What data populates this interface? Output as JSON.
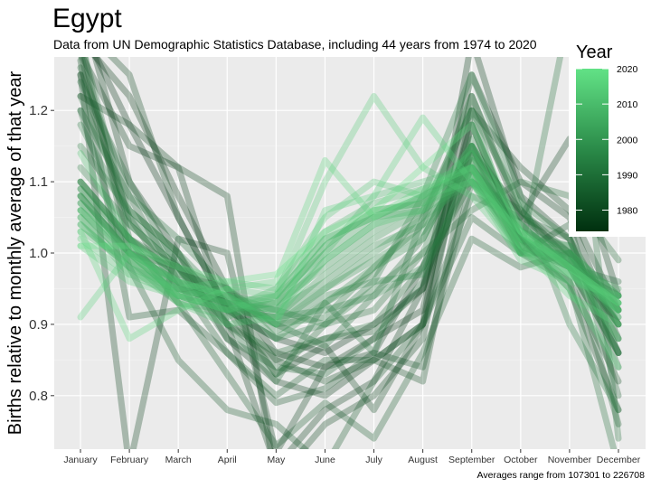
{
  "chart_data": {
    "type": "line",
    "title": "Egypt",
    "subtitle": "Data from UN Demographic Statistics Database, including 44 years from 1974 to 2020",
    "xlabel": "",
    "ylabel": "Births relative to monthly average of that year",
    "caption": "Averages range from 107301 to 226708",
    "categories": [
      "January",
      "February",
      "March",
      "April",
      "May",
      "June",
      "July",
      "August",
      "September",
      "October",
      "November",
      "December"
    ],
    "ylim": [
      0.725,
      1.275
    ],
    "yticks": [
      0.8,
      0.9,
      1.0,
      1.1,
      1.2
    ],
    "ytick_labels": [
      "0.8",
      "0.9",
      "1.0",
      "1.1",
      "1.2"
    ],
    "grid": true,
    "legend": {
      "title": "Year",
      "position": "top-right",
      "type": "colorbar",
      "range": [
        1974,
        2020
      ],
      "ticks": [
        1980,
        1990,
        2000,
        2010,
        2020
      ],
      "tick_labels": [
        "1980",
        "1990",
        "2000",
        "2010",
        "2020"
      ],
      "color_low": "#00300f",
      "color_high": "#62e286"
    },
    "series": [
      {
        "year": 1974,
        "values": [
          1.32,
          1.18,
          1.05,
          0.92,
          0.88,
          0.86,
          0.9,
          0.95,
          1.18,
          1.02,
          0.98,
          0.94
        ]
      },
      {
        "year": 1975,
        "values": [
          1.3,
          1.22,
          1.08,
          0.95,
          0.86,
          0.84,
          0.88,
          0.92,
          1.22,
          1.05,
          1.0,
          0.9
        ]
      },
      {
        "year": 1976,
        "values": [
          1.35,
          1.1,
          1.0,
          0.88,
          0.82,
          0.8,
          0.85,
          0.9,
          1.3,
          1.08,
          1.02,
          0.86
        ]
      },
      {
        "year": 1977,
        "values": [
          1.28,
          1.15,
          1.12,
          0.9,
          0.7,
          0.78,
          0.82,
          0.95,
          1.25,
          1.1,
          1.05,
          0.88
        ]
      },
      {
        "year": 1978,
        "values": [
          1.25,
          0.7,
          1.02,
          1.0,
          0.72,
          0.84,
          0.86,
          0.98,
          1.15,
          1.05,
          1.16,
          0.94
        ]
      },
      {
        "year": 1979,
        "values": [
          1.22,
          1.18,
          1.12,
          1.08,
          0.68,
          0.76,
          0.8,
          0.88,
          1.2,
          1.12,
          1.06,
          0.92
        ]
      },
      {
        "year": 1980,
        "values": [
          1.32,
          1.25,
          1.05,
          0.92,
          0.83,
          0.87,
          0.78,
          0.9,
          1.18,
          1.02,
          0.95,
          0.78
        ]
      },
      {
        "year": 1981,
        "values": [
          1.3,
          1.0,
          0.98,
          0.9,
          0.85,
          0.82,
          0.85,
          0.82,
          1.15,
          1.0,
          0.96,
          0.82
        ]
      },
      {
        "year": 1982,
        "values": [
          1.27,
          0.91,
          0.92,
          0.86,
          0.79,
          0.81,
          0.86,
          0.84,
          1.1,
          1.04,
          0.98,
          0.86
        ]
      },
      {
        "year": 1983,
        "values": [
          1.25,
          1.05,
          0.95,
          0.93,
          0.85,
          0.88,
          0.89,
          0.95,
          1.14,
          1.06,
          0.99,
          0.9
        ]
      },
      {
        "year": 1984,
        "values": [
          1.2,
          0.98,
          0.85,
          0.78,
          0.76,
          0.7,
          0.82,
          0.9,
          1.05,
          1.0,
          1.04,
          0.8
        ]
      },
      {
        "year": 1985,
        "values": [
          1.28,
          1.02,
          0.93,
          0.83,
          0.73,
          0.79,
          0.74,
          0.86,
          1.02,
          0.98,
          1.0,
          0.76
        ]
      },
      {
        "year": 1986,
        "values": [
          1.26,
          1.08,
          0.96,
          0.86,
          0.8,
          0.85,
          0.85,
          0.9,
          1.08,
          1.05,
          1.02,
          0.84
        ]
      },
      {
        "year": 1987,
        "values": [
          1.24,
          1.1,
          0.98,
          0.88,
          0.84,
          0.83,
          0.88,
          0.96,
          1.12,
          1.04,
          0.98,
          0.96
        ]
      },
      {
        "year": 1988,
        "values": [
          1.22,
          1.06,
          1.0,
          0.9,
          0.86,
          0.88,
          0.9,
          0.98,
          1.1,
          1.06,
          1.0,
          0.92
        ]
      },
      {
        "year": 1989,
        "values": [
          1.1,
          1.02,
          0.98,
          0.93,
          0.83,
          0.9,
          0.92,
          1.0,
          1.06,
          1.1,
          1.08,
          0.99
        ]
      },
      {
        "year": 1990,
        "values": [
          1.2,
          1.08,
          1.02,
          0.95,
          0.9,
          0.87,
          0.94,
          1.02,
          1.15,
          1.02,
          0.96,
          0.7
        ]
      },
      {
        "year": 1991,
        "values": [
          1.3,
          1.04,
          0.98,
          0.9,
          0.82,
          0.93,
          0.86,
          1.05,
          1.2,
          1.0,
          1.34,
          0.74
        ]
      },
      {
        "year": 1992,
        "values": [
          1.18,
          1.05,
          0.99,
          0.92,
          0.88,
          0.9,
          0.96,
          1.08,
          1.25,
          1.08,
          0.9,
          0.78
        ]
      },
      {
        "year": 1993,
        "values": [
          1.15,
          1.06,
          1.0,
          0.93,
          0.9,
          0.91,
          0.98,
          1.04,
          1.22,
          1.06,
          0.98,
          0.86
        ]
      },
      {
        "year": 1994,
        "values": [
          1.12,
          1.04,
          0.98,
          0.95,
          0.89,
          0.93,
          0.97,
          1.06,
          1.2,
          1.07,
          1.02,
          0.9
        ]
      },
      {
        "year": 1995,
        "values": [
          1.1,
          1.02,
          0.97,
          0.94,
          0.92,
          0.9,
          0.95,
          1.0,
          1.16,
          1.02,
          0.99,
          0.88
        ]
      },
      {
        "year": 1996,
        "values": [
          1.08,
          1.0,
          0.96,
          0.93,
          0.91,
          0.92,
          0.94,
          0.98,
          1.14,
          1.0,
          1.0,
          0.91
        ]
      },
      {
        "year": 1997,
        "values": [
          1.09,
          1.01,
          0.95,
          0.94,
          0.9,
          0.94,
          0.96,
          0.97,
          1.12,
          1.03,
          1.01,
          0.86
        ]
      },
      {
        "year": 1998,
        "values": [
          1.1,
          1.02,
          0.97,
          0.95,
          0.88,
          0.93,
          0.98,
          1.02,
          1.15,
          1.01,
          0.98,
          0.92
        ]
      },
      {
        "year": 1999,
        "values": [
          1.08,
          1.0,
          0.96,
          0.92,
          0.91,
          0.95,
          0.99,
          1.03,
          1.13,
          1.02,
          1.0,
          0.9
        ]
      },
      {
        "year": 2000,
        "values": [
          1.07,
          1.01,
          0.95,
          0.93,
          0.92,
          0.96,
          1.01,
          1.04,
          1.12,
          1.0,
          0.99,
          0.93
        ]
      },
      {
        "year": 2001,
        "values": [
          1.09,
          1.02,
          0.96,
          0.94,
          0.9,
          0.95,
          1.0,
          1.05,
          1.1,
          1.02,
          1.01,
          0.92
        ]
      },
      {
        "year": 2002,
        "values": [
          1.08,
          1.0,
          0.94,
          0.92,
          0.91,
          0.97,
          1.02,
          1.06,
          1.11,
          1.03,
          1.0,
          0.94
        ]
      },
      {
        "year": 2003,
        "values": [
          1.06,
          0.99,
          0.93,
          0.92,
          0.93,
          0.98,
          1.03,
          1.07,
          1.13,
          1.01,
          0.98,
          0.95
        ]
      },
      {
        "year": 2004,
        "values": [
          1.07,
          1.0,
          0.94,
          0.93,
          0.92,
          0.99,
          1.04,
          1.08,
          1.12,
          1.02,
          0.99,
          0.93
        ]
      },
      {
        "year": 2005,
        "values": [
          1.05,
          0.98,
          0.93,
          0.91,
          0.94,
          1.0,
          1.05,
          1.06,
          1.1,
          1.0,
          1.0,
          0.94
        ]
      },
      {
        "year": 2006,
        "values": [
          1.06,
          0.99,
          0.94,
          0.92,
          0.93,
          1.01,
          1.06,
          1.07,
          1.11,
          1.01,
          0.99,
          0.92
        ]
      },
      {
        "year": 2007,
        "values": [
          1.04,
          0.98,
          0.95,
          0.93,
          0.94,
          1.02,
          1.05,
          1.08,
          1.12,
          1.02,
          0.98,
          0.93
        ]
      },
      {
        "year": 2008,
        "values": [
          1.05,
          0.97,
          0.94,
          0.92,
          0.95,
          1.03,
          1.07,
          1.09,
          1.11,
          1.0,
          0.97,
          0.94
        ]
      },
      {
        "year": 2009,
        "values": [
          1.03,
          0.99,
          0.96,
          0.94,
          0.93,
          1.01,
          1.06,
          1.07,
          1.1,
          1.01,
          0.98,
          0.92
        ]
      },
      {
        "year": 2010,
        "values": [
          1.04,
          0.98,
          0.95,
          0.93,
          0.92,
          1.0,
          1.08,
          1.1,
          1.12,
          1.02,
          0.99,
          0.91
        ]
      },
      {
        "year": 2011,
        "values": [
          1.06,
          1.0,
          0.94,
          0.92,
          0.94,
          1.02,
          1.05,
          1.08,
          1.14,
          1.03,
          0.97,
          0.93
        ]
      },
      {
        "year": 2012,
        "values": [
          1.14,
          1.02,
          0.93,
          0.9,
          0.91,
          0.99,
          1.04,
          1.06,
          1.15,
          1.04,
          0.98,
          0.88
        ]
      },
      {
        "year": 2013,
        "values": [
          1.02,
          0.97,
          0.95,
          0.96,
          0.95,
          1.05,
          1.1,
          1.08,
          1.1,
          0.99,
          0.96,
          0.94
        ]
      },
      {
        "year": 2014,
        "values": [
          1.01,
          0.96,
          0.94,
          0.95,
          0.94,
          1.1,
          1.22,
          1.12,
          1.08,
          1.0,
          0.97,
          0.92
        ]
      },
      {
        "year": 2015,
        "values": [
          0.91,
          1.0,
          0.96,
          0.94,
          0.9,
          1.06,
          1.08,
          1.19,
          1.1,
          1.03,
          0.95,
          0.84
        ]
      },
      {
        "year": 2016,
        "values": [
          1.03,
          0.88,
          0.92,
          0.95,
          0.96,
          1.13,
          1.05,
          1.09,
          1.12,
          1.01,
          0.94,
          0.9
        ]
      },
      {
        "year": 2020,
        "values": [
          1.01,
          1.01,
          0.98,
          0.96,
          0.97,
          1.03,
          1.06,
          1.12,
          1.18,
          1.03,
          0.98,
          0.93
        ]
      }
    ]
  }
}
